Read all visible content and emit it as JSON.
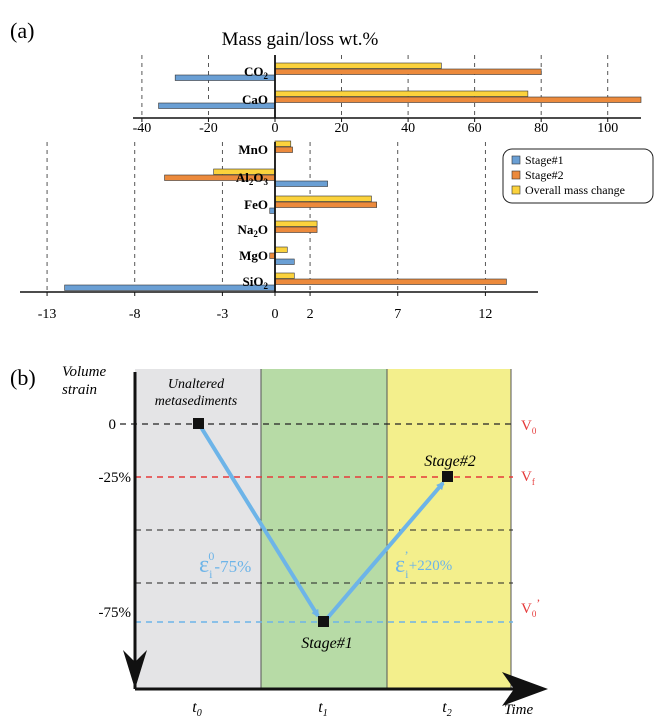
{
  "panel_a": {
    "label": "(a)",
    "title": "Mass gain/loss wt.%",
    "legend": [
      "Stage#1",
      "Stage#2",
      "Overall mass change"
    ],
    "colors": {
      "stage1": "#6a9fd4",
      "stage2": "#ec8a3c",
      "overall": "#fbd23c"
    }
  },
  "panel_b": {
    "label": "(b)",
    "ylabel_line1": "Volume",
    "ylabel_line2": "strain",
    "xlabel": "Time",
    "y_ticks": [
      "0",
      "-25%",
      "-75%"
    ],
    "x_ticks": [
      {
        "base": "t",
        "sub": "0"
      },
      {
        "base": "t",
        "sub": "1"
      },
      {
        "base": "t",
        "sub": "2"
      }
    ],
    "v_labels": [
      {
        "base": "V",
        "sub": "0",
        "sup": ""
      },
      {
        "base": "V",
        "sub": "f",
        "sup": ""
      },
      {
        "base": "V",
        "sub": "0",
        "sup": "’"
      }
    ],
    "zone_label_line1": "Unaltered",
    "zone_label_line2": "metasediments",
    "stage1_label": "Stage#1",
    "stage2_label": "Stage#2",
    "arrow1_label": {
      "eps": "ε",
      "sub": "i",
      "sup": "0",
      "text": "-75%"
    },
    "arrow2_label": {
      "eps": "ε",
      "sub": "i",
      "sup": "’",
      "text": "+220%"
    },
    "colors": {
      "zone0": "#e4e4e6",
      "zone1": "#b7dba6",
      "zone2": "#f3ef8c",
      "arrow": "#6db4e8",
      "red": "#e53a3a",
      "blue_dash": "#6db4e8"
    }
  },
  "chart_data": [
    {
      "type": "bar",
      "orientation": "horizontal",
      "title": "Mass gain/loss wt.%",
      "categories": [
        "CO₂",
        "CaO"
      ],
      "xlim": [
        -45,
        110
      ],
      "x_ticks": [
        -40,
        -20,
        0,
        20,
        40,
        60,
        80,
        100
      ],
      "series": [
        {
          "name": "Stage#1",
          "values": [
            -30,
            -35
          ]
        },
        {
          "name": "Stage#2",
          "values": [
            80,
            110
          ]
        },
        {
          "name": "Overall mass change",
          "values": [
            50,
            76
          ]
        }
      ]
    },
    {
      "type": "bar",
      "orientation": "horizontal",
      "categories": [
        "MnO",
        "Al₂O₃",
        "FeO",
        "Na₂O",
        "MgO",
        "SiO₂"
      ],
      "xlim": [
        -13.8,
        15
      ],
      "x_ticks": [
        -13,
        -8,
        -3,
        0,
        2,
        7,
        12
      ],
      "series": [
        {
          "name": "Stage#1",
          "values": [
            0,
            3,
            -0.3,
            0,
            1.1,
            -12
          ]
        },
        {
          "name": "Stage#2",
          "values": [
            1,
            -6.3,
            5.8,
            2.4,
            -0.3,
            13.2
          ]
        },
        {
          "name": "Overall mass change",
          "values": [
            0.9,
            -3.5,
            5.5,
            2.4,
            0.7,
            1.1
          ]
        }
      ]
    },
    {
      "type": "line",
      "title": "",
      "xlabel": "Time",
      "ylabel": "Volume strain",
      "x": [
        "t0",
        "t1",
        "t2"
      ],
      "series": [
        {
          "name": "",
          "values": [
            0,
            -75,
            -25
          ]
        }
      ],
      "y_ticks": [
        0,
        -25,
        -75
      ]
    }
  ]
}
